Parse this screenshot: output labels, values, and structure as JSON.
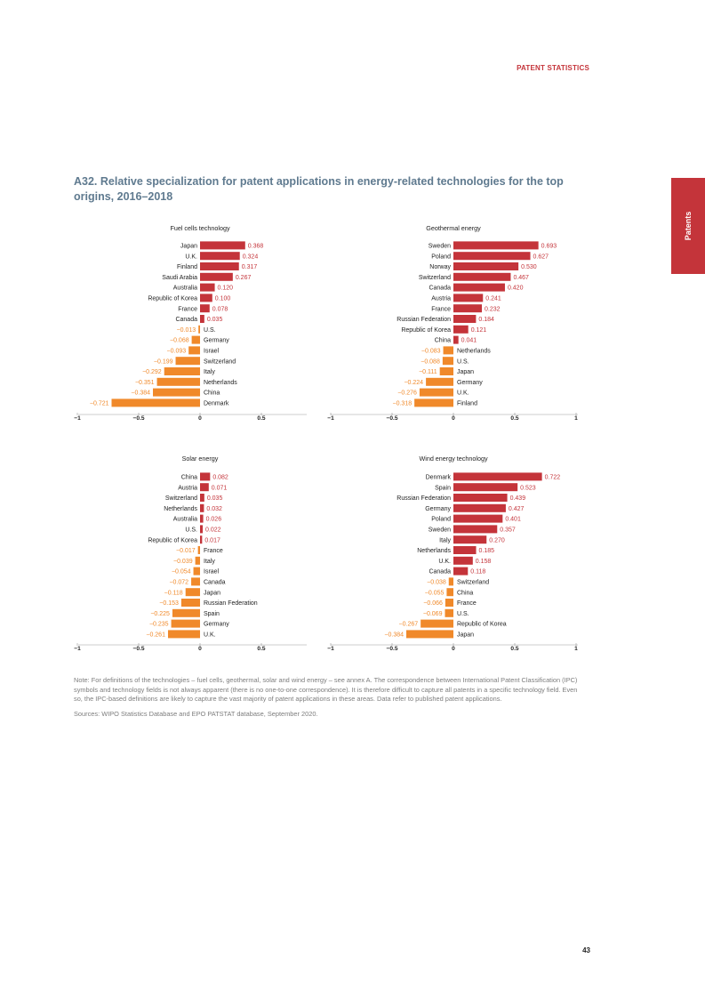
{
  "page": {
    "header": "PATENT STATISTICS",
    "side_tab": "Patents",
    "title": "A32. Relative specialization for patent applications in energy-related technologies for the top origins, 2016–2018",
    "note": "Note: For definitions of the technologies – fuel cells, geothermal, solar and wind energy – see annex A. The correspondence between International Patent Classification (IPC) symbols and technology fields is not always apparent (there is no one-to-one correspondence). It is therefore difficult to capture all patents in a specific technology field. Even so, the IPC-based definitions are likely to capture the vast majority of patent applications in these areas. Data refer to published patent applications.",
    "sources": "Sources: WIPO Statistics Database and EPO PATSTAT database, September 2020.",
    "page_number": "43"
  },
  "colors": {
    "positive": "#c4343a",
    "negative": "#f0892a",
    "accent": "#c4343a",
    "title": "#5f7a8f"
  },
  "chart_data": [
    {
      "type": "bar",
      "title": "Fuel cells technology",
      "xlim": [
        -1,
        0.5
      ],
      "ticks": [
        "−1",
        "−0.5",
        "0",
        "0.5"
      ],
      "tick_values": [
        -1,
        -0.5,
        0,
        0.5
      ],
      "categories": [
        "Japan",
        "U.K.",
        "Finland",
        "Saudi Arabia",
        "Australia",
        "Republic of Korea",
        "France",
        "Canada",
        "U.S.",
        "Germany",
        "Israel",
        "Switzerland",
        "Italy",
        "Netherlands",
        "China",
        "Denmark"
      ],
      "values": [
        0.368,
        0.324,
        0.317,
        0.267,
        0.12,
        0.1,
        0.078,
        0.035,
        -0.013,
        -0.068,
        -0.093,
        -0.199,
        -0.292,
        -0.351,
        -0.384,
        -0.721
      ],
      "labels": [
        "0.368",
        "0.324",
        "0.317",
        "0.267",
        "0.120",
        "0.100",
        "0.078",
        "0.035",
        "−0.013",
        "−0.068",
        "−0.093",
        "−0.199",
        "−0.292",
        "−0.351",
        "−0.384",
        "−0.721"
      ]
    },
    {
      "type": "bar",
      "title": "Geothermal energy",
      "xlim": [
        -1,
        1
      ],
      "ticks": [
        "−1",
        "−0.5",
        "0",
        "0.5",
        "1"
      ],
      "tick_values": [
        -1,
        -0.5,
        0,
        0.5,
        1
      ],
      "categories": [
        "Sweden",
        "Poland",
        "Norway",
        "Switzerland",
        "Canada",
        "Austria",
        "France",
        "Russian Federation",
        "Republic of Korea",
        "China",
        "Netherlands",
        "U.S.",
        "Japan",
        "Germany",
        "U.K.",
        "Finland"
      ],
      "values": [
        0.693,
        0.627,
        0.53,
        0.467,
        0.42,
        0.241,
        0.232,
        0.184,
        0.121,
        0.041,
        -0.083,
        -0.088,
        -0.111,
        -0.224,
        -0.276,
        -0.318
      ],
      "labels": [
        "0.693",
        "0.627",
        "0.530",
        "0.467",
        "0.420",
        "0.241",
        "0.232",
        "0.184",
        "0.121",
        "0.041",
        "−0.083",
        "−0.088",
        "−0.111",
        "−0.224",
        "−0.276",
        "−0.318"
      ]
    },
    {
      "type": "bar",
      "title": "Solar energy",
      "xlim": [
        -1,
        0.5
      ],
      "ticks": [
        "−1",
        "−0.5",
        "0",
        "0.5"
      ],
      "tick_values": [
        -1,
        -0.5,
        0,
        0.5
      ],
      "categories": [
        "China",
        "Austria",
        "Switzerland",
        "Netherlands",
        "Australia",
        "U.S.",
        "Republic of Korea",
        "France",
        "Italy",
        "Israel",
        "Canada",
        "Japan",
        "Russian Federation",
        "Spain",
        "Germany",
        "U.K."
      ],
      "values": [
        0.082,
        0.071,
        0.035,
        0.032,
        0.026,
        0.022,
        0.017,
        -0.017,
        -0.039,
        -0.054,
        -0.072,
        -0.118,
        -0.153,
        -0.225,
        -0.235,
        -0.261
      ],
      "labels": [
        "0.082",
        "0.071",
        "0.035",
        "0.032",
        "0.026",
        "0.022",
        "0.017",
        "−0.017",
        "−0.039",
        "−0.054",
        "−0.072",
        "−0.118",
        "−0.153",
        "−0.225",
        "−0.235",
        "−0.261"
      ]
    },
    {
      "type": "bar",
      "title": "Wind energy technology",
      "xlim": [
        -1,
        1
      ],
      "ticks": [
        "−1",
        "−0.5",
        "0",
        "0.5",
        "1"
      ],
      "tick_values": [
        -1,
        -0.5,
        0,
        0.5,
        1
      ],
      "categories": [
        "Denmark",
        "Spain",
        "Russian Federation",
        "Germany",
        "Poland",
        "Sweden",
        "Italy",
        "Netherlands",
        "U.K.",
        "Canada",
        "Switzerland",
        "China",
        "France",
        "U.S.",
        "Republic of Korea",
        "Japan"
      ],
      "values": [
        0.722,
        0.523,
        0.439,
        0.427,
        0.401,
        0.357,
        0.27,
        0.185,
        0.158,
        0.118,
        -0.038,
        -0.055,
        -0.066,
        -0.069,
        -0.267,
        -0.384
      ],
      "labels": [
        "0.722",
        "0.523",
        "0.439",
        "0.427",
        "0.401",
        "0.357",
        "0.270",
        "0.185",
        "0.158",
        "0.118",
        "−0.038",
        "−0.055",
        "−0.066",
        "−0.069",
        "−0.267",
        "−0.384"
      ]
    }
  ]
}
